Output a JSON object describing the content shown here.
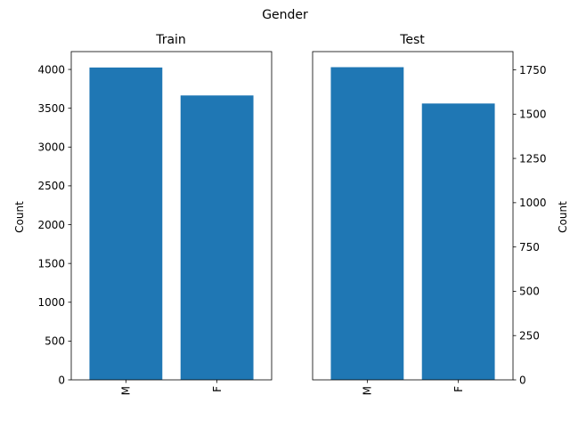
{
  "suptitle": "Gender",
  "chart_data": [
    {
      "type": "bar",
      "title": "Train",
      "categories": [
        "M",
        "F"
      ],
      "values": [
        4025,
        3665
      ],
      "ylabel": "Count",
      "xlabel": "",
      "ylim": [
        0,
        4230
      ],
      "yticks": [
        0,
        500,
        1000,
        1500,
        2000,
        2500,
        3000,
        3500,
        4000
      ],
      "yaxis_side": "left",
      "bar_color": "#1f77b4",
      "grid": false
    },
    {
      "type": "bar",
      "title": "Test",
      "categories": [
        "M",
        "F"
      ],
      "values": [
        1765,
        1560
      ],
      "ylabel": "Count",
      "xlabel": "",
      "ylim": [
        0,
        1853
      ],
      "yticks": [
        0,
        250,
        500,
        750,
        1000,
        1250,
        1500,
        1750
      ],
      "yaxis_side": "right",
      "bar_color": "#1f77b4",
      "grid": false
    }
  ]
}
